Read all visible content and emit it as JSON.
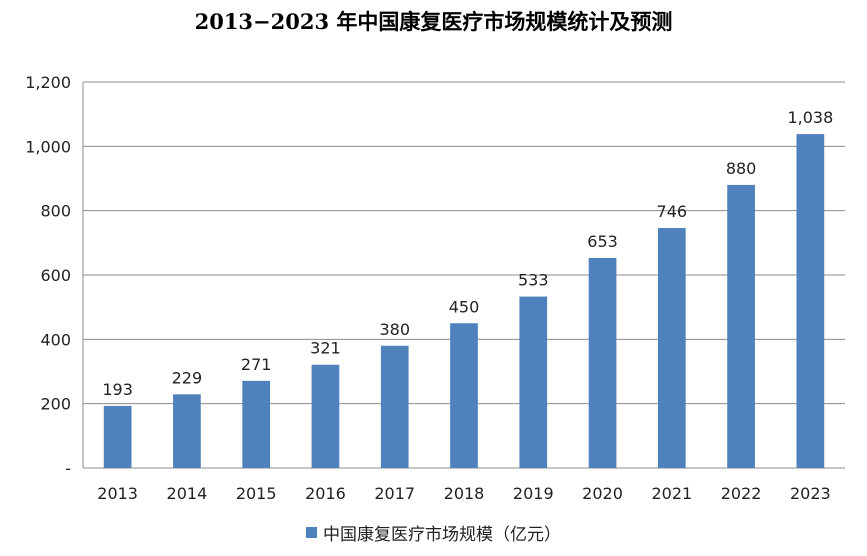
{
  "chart_data": {
    "type": "bar",
    "title": "2013−2023 年中国康复医疗市场规模统计及预测",
    "categories": [
      "2013",
      "2014",
      "2015",
      "2016",
      "2017",
      "2018",
      "2019",
      "2020",
      "2021",
      "2022",
      "2023"
    ],
    "series": [
      {
        "name": "中国康复医疗市场规模（亿元）",
        "values": [
          193,
          229,
          271,
          321,
          380,
          450,
          533,
          653,
          746,
          880,
          1038
        ],
        "labels": [
          "193",
          "229",
          "271",
          "321",
          "380",
          "450",
          "533",
          "653",
          "746",
          "880",
          "1,038"
        ],
        "color": "#4F81BD"
      }
    ],
    "ylim": [
      0,
      1200
    ],
    "yticks": [
      0,
      200,
      400,
      600,
      800,
      1000,
      1200
    ],
    "ytick_labels": [
      "-",
      "200",
      "400",
      "600",
      "800",
      "1,000",
      "1,200"
    ],
    "grid": true,
    "legend_position": "bottom"
  }
}
